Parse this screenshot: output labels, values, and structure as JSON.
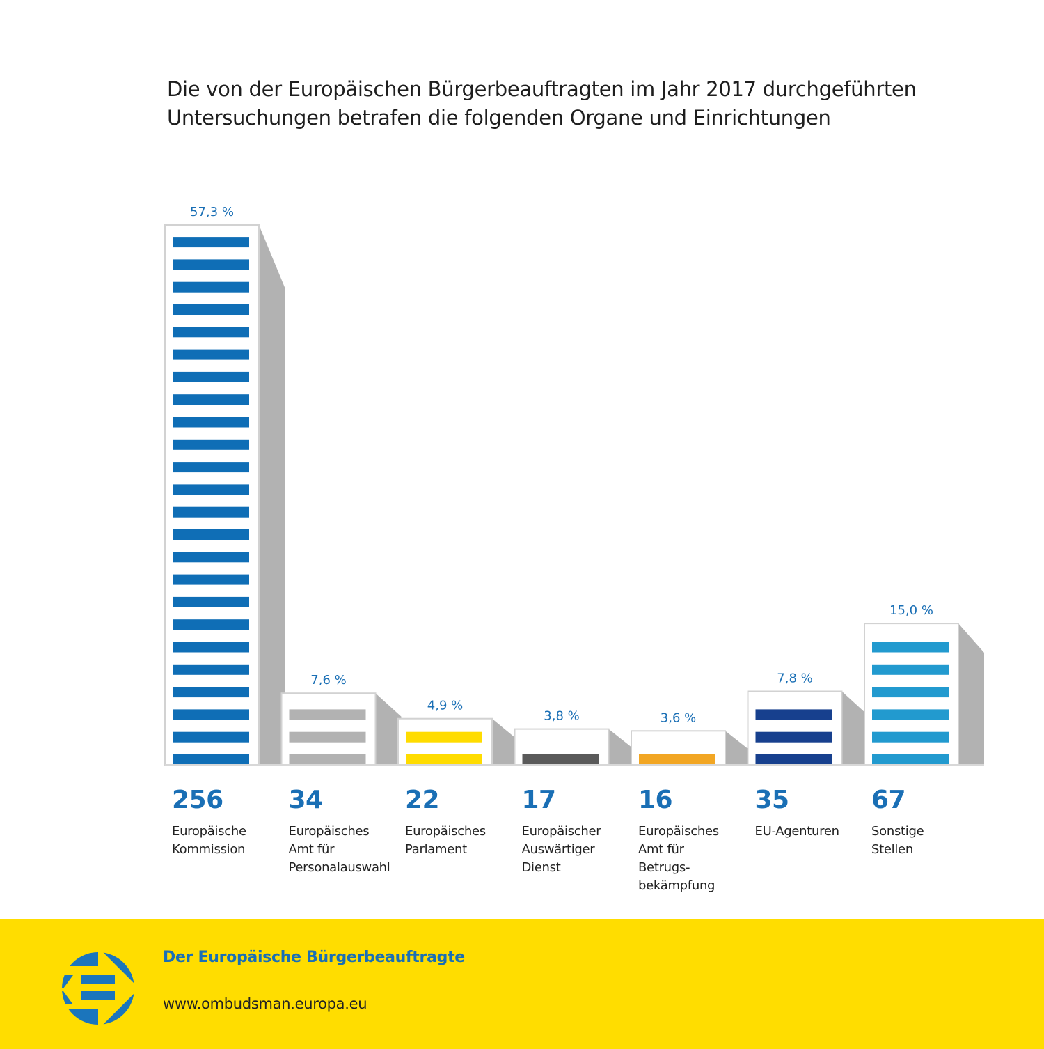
{
  "title_lines": [
    "Die von der Europäischen Bürgerbeauftragten im Jahr 2017 durchgeführten",
    "Untersuchungen betrafen die folgenden Organe und Einrichtungen"
  ],
  "chart_data": {
    "type": "bar",
    "title": "Die von der Europäischen Bürgerbeauftragten im Jahr 2017 durchgeführten Untersuchungen betrafen die folgenden Organe und Einrichtungen",
    "xlabel": "",
    "ylabel": "",
    "unit": "%",
    "grid": false,
    "legend": "none",
    "ylim": [
      0,
      57.3
    ],
    "categories": [
      "Europäische\nKommission",
      "Europäisches\nAmt für\nPersonalauswahl",
      "Europäisches\nParlament",
      "Europäischer\nAuswärtiger\nDienst",
      "Europäisches\nAmt für\nBetrugs-\nbekämpfung",
      "EU-Agenturen",
      "Sonstige\nStellen"
    ],
    "values": [
      57.3,
      7.6,
      4.9,
      3.8,
      3.6,
      7.8,
      15.0
    ],
    "counts": [
      256,
      34,
      22,
      17,
      16,
      35,
      67
    ],
    "percent_labels": [
      "57,3 %",
      "7,6 %",
      "4,9 %",
      "3,8 %",
      "3,6 %",
      "7,8 %",
      "15,0 %"
    ],
    "stripe_colors": [
      "#0F6EB6",
      "#B2B2B2",
      "#FFDC00",
      "#5A5A5A",
      "#F2A623",
      "#17408E",
      "#229ACF"
    ]
  },
  "colors": {
    "label_blue": "#1a6fb5",
    "shadow": "#B2B2B2",
    "footer_yellow": "#FFDD00",
    "logo_blue": "#1B75BC"
  },
  "footer": {
    "organization": "Der Europäische Bürgerbeauftragte",
    "url": "www.ombudsman.europa.eu",
    "logo_icon": "european-ombudsman-logo"
  }
}
